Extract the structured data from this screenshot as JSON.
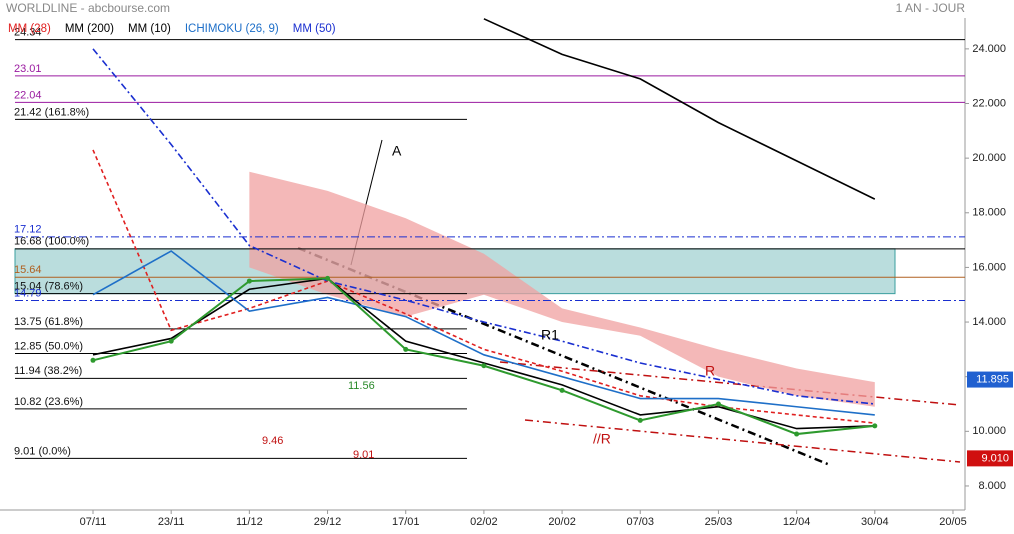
{
  "chart_data": {
    "type": "line",
    "title": "WORLDLINE - abcbourse.com",
    "period": "1 AN - JOUR",
    "categories": [
      "07/11",
      "23/11",
      "11/12",
      "29/12",
      "17/01",
      "02/02",
      "20/02",
      "07/03",
      "25/03",
      "12/04",
      "30/04",
      "20/05"
    ],
    "values": [
      12.6,
      13.3,
      15.5,
      15.6,
      13.0,
      12.4,
      11.5,
      10.4,
      11.0,
      9.9,
      10.2,
      null
    ],
    "color": "#2e9a2e",
    "series": [
      {
        "name": "MM (28)",
        "color": "#e02020",
        "dash": "4,3",
        "values": [
          20.3,
          13.7,
          14.5,
          15.5,
          14.3,
          13.0,
          12.2,
          11.3,
          10.9,
          10.6,
          10.3,
          null
        ]
      },
      {
        "name": "MM (200)",
        "color": "#000000",
        "dash": "",
        "values": [
          null,
          null,
          null,
          null,
          null,
          25.1,
          23.8,
          22.9,
          21.3,
          19.9,
          18.5,
          null
        ]
      },
      {
        "name": "MM (10)",
        "color": "#000000",
        "dash": "",
        "values": [
          12.8,
          13.4,
          15.2,
          15.6,
          13.3,
          12.5,
          11.7,
          10.6,
          10.9,
          10.1,
          10.2,
          null
        ]
      },
      {
        "name": "ICHIMOKU (26, 9)",
        "color": "#1e6fc8",
        "dash": "",
        "values": [
          15.0,
          16.6,
          14.4,
          14.9,
          14.2,
          12.8,
          12.0,
          11.2,
          11.2,
          10.9,
          10.6,
          null
        ]
      },
      {
        "name": "MM (50)",
        "color": "#1a2fd0",
        "dash": "7,3,2,3",
        "values": [
          24.0,
          20.5,
          16.8,
          15.5,
          14.8,
          14.0,
          13.3,
          12.5,
          11.9,
          11.3,
          11.0,
          null
        ]
      }
    ],
    "cloud": {
      "color": "#f0a0a0",
      "upper": [
        null,
        null,
        19.5,
        18.8,
        17.8,
        16.5,
        14.5,
        13.8,
        13.0,
        12.3,
        11.8,
        null
      ],
      "lower": [
        null,
        null,
        16.0,
        15.0,
        14.2,
        15.0,
        14.0,
        13.5,
        12.0,
        11.3,
        10.9,
        null
      ]
    },
    "levels": [
      {
        "value": 24.34,
        "label": "24.34",
        "color": "#000000"
      },
      {
        "value": 23.01,
        "label": "23.01",
        "color": "#9a1aa0"
      },
      {
        "value": 22.04,
        "label": "22.04",
        "color": "#9a1aa0"
      },
      {
        "value": 21.42,
        "label": "21.42 (161.8%)",
        "color": "#000000"
      },
      {
        "value": 17.12,
        "label": "17.12",
        "color": "#1a2fd0"
      },
      {
        "value": 16.68,
        "label": "16.68 (100.0%)",
        "color": "#000000"
      },
      {
        "value": 15.64,
        "label": "15.64",
        "color": "#b06020"
      },
      {
        "value": 15.04,
        "label": "15.04 (78.6%)",
        "color": "#000000"
      },
      {
        "value": 14.79,
        "label": "14.79",
        "color": "#1a2fd0"
      },
      {
        "value": 13.75,
        "label": "13.75 (61.8%)",
        "color": "#000000"
      },
      {
        "value": 12.85,
        "label": "12.85 (50.0%)",
        "color": "#000000"
      },
      {
        "value": 11.94,
        "label": "11.94 (38.2%)",
        "color": "#000000"
      },
      {
        "value": 10.82,
        "label": "10.82 (23.6%)",
        "color": "#000000"
      },
      {
        "value": 9.01,
        "label": "9.01 (0.0%)",
        "color": "#000000"
      }
    ],
    "annotations": [
      "A",
      "R1",
      "R",
      "//R",
      "11.56",
      "9.46",
      "9.01"
    ],
    "last_price": {
      "value": 11.895,
      "label": "11.895"
    },
    "support": {
      "value": 9.01,
      "label": "9.010"
    },
    "ylim": [
      7.12,
      25.13
    ],
    "yticks": [
      {
        "value": 8,
        "label": "8.000"
      },
      {
        "value": 10,
        "label": "10.000"
      },
      {
        "value": 12,
        "label": "12.000"
      },
      {
        "value": 14,
        "label": "14.000"
      },
      {
        "value": 16,
        "label": "16.000"
      },
      {
        "value": 18,
        "label": "18.000"
      },
      {
        "value": 20,
        "label": "20.000"
      },
      {
        "value": 22,
        "label": "22.000"
      },
      {
        "value": 24,
        "label": "24.000"
      }
    ]
  }
}
